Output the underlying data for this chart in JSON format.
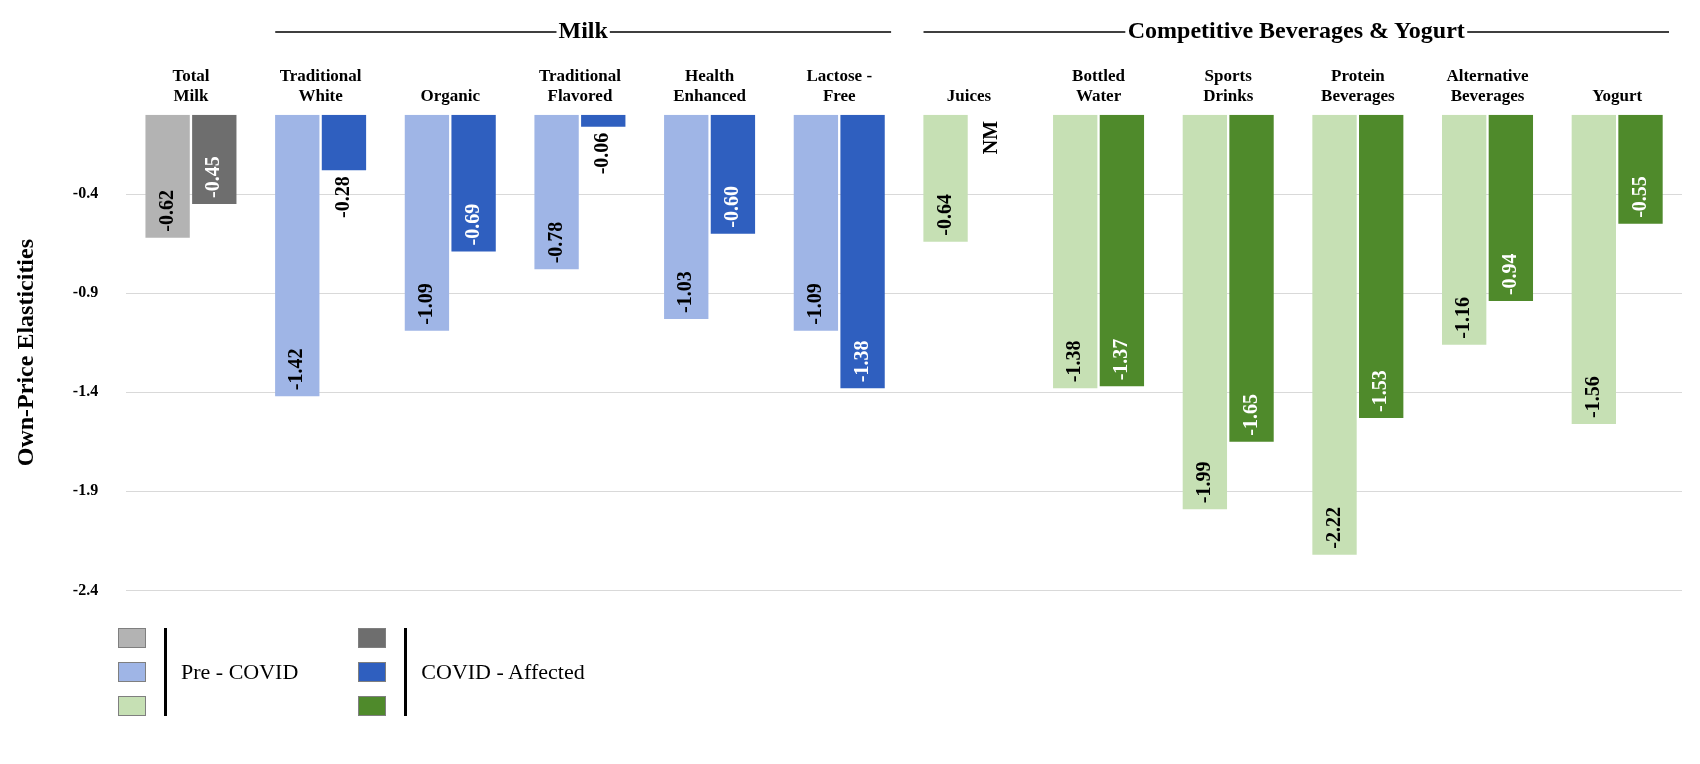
{
  "chart_data": {
    "type": "bar",
    "ylabel": "Own-Price Elasticities",
    "categories": [
      "Total Milk",
      "Traditional White",
      "Organic",
      "Traditional Flavored",
      "Health Enhanced",
      "Lactose - Free",
      "Juices",
      "Bottled Water",
      "Sports Drinks",
      "Protein Beverages",
      "Alternative Beverages",
      "Yogurt"
    ],
    "series": [
      {
        "name": "Pre - COVID",
        "colors": [
          "#b3b3b3",
          "#9fb5e6",
          "#9fb5e6",
          "#9fb5e6",
          "#9fb5e6",
          "#9fb5e6",
          "#c6e0b4",
          "#c6e0b4",
          "#c6e0b4",
          "#c6e0b4",
          "#c6e0b4",
          "#c6e0b4"
        ],
        "values": [
          -0.62,
          -1.42,
          -1.09,
          -0.78,
          -1.03,
          -1.09,
          -0.64,
          -1.38,
          -1.99,
          -2.22,
          -1.16,
          -1.56
        ],
        "value_labels": [
          "-0.62",
          "-1.42",
          "-1.09",
          "-0.78",
          "-1.03",
          "-1.09",
          "-0.64",
          "-1.38",
          "-1.99",
          "-2.22",
          "-1.16",
          "-1.56"
        ]
      },
      {
        "name": "COVID - Affected",
        "colors": [
          "#6e6e6e",
          "#2f5fbf",
          "#2f5fbf",
          "#2f5fbf",
          "#2f5fbf",
          "#2f5fbf",
          "#4f8a2b",
          "#4f8a2b",
          "#4f8a2b",
          "#4f8a2b",
          "#4f8a2b",
          "#4f8a2b"
        ],
        "values": [
          -0.45,
          -0.28,
          -0.69,
          -0.06,
          -0.6,
          -1.38,
          null,
          -1.37,
          -1.65,
          -1.53,
          -0.94,
          -0.55
        ],
        "value_labels": [
          "-0.45",
          "-0.28",
          "-0.69",
          "-0.06",
          "-0.60",
          "-1.38",
          "NM",
          "-1.37",
          "-1.65",
          "-1.53",
          "-0.94",
          "-0.55"
        ]
      }
    ],
    "ylim": [
      -2.4,
      0
    ],
    "yticks": [
      -0.4,
      -0.9,
      -1.4,
      -1.9,
      -2.4
    ],
    "grid": "y",
    "legend": "bottom left",
    "annotations": [
      "Milk",
      "Competitive Beverages & Yogurt"
    ]
  }
}
